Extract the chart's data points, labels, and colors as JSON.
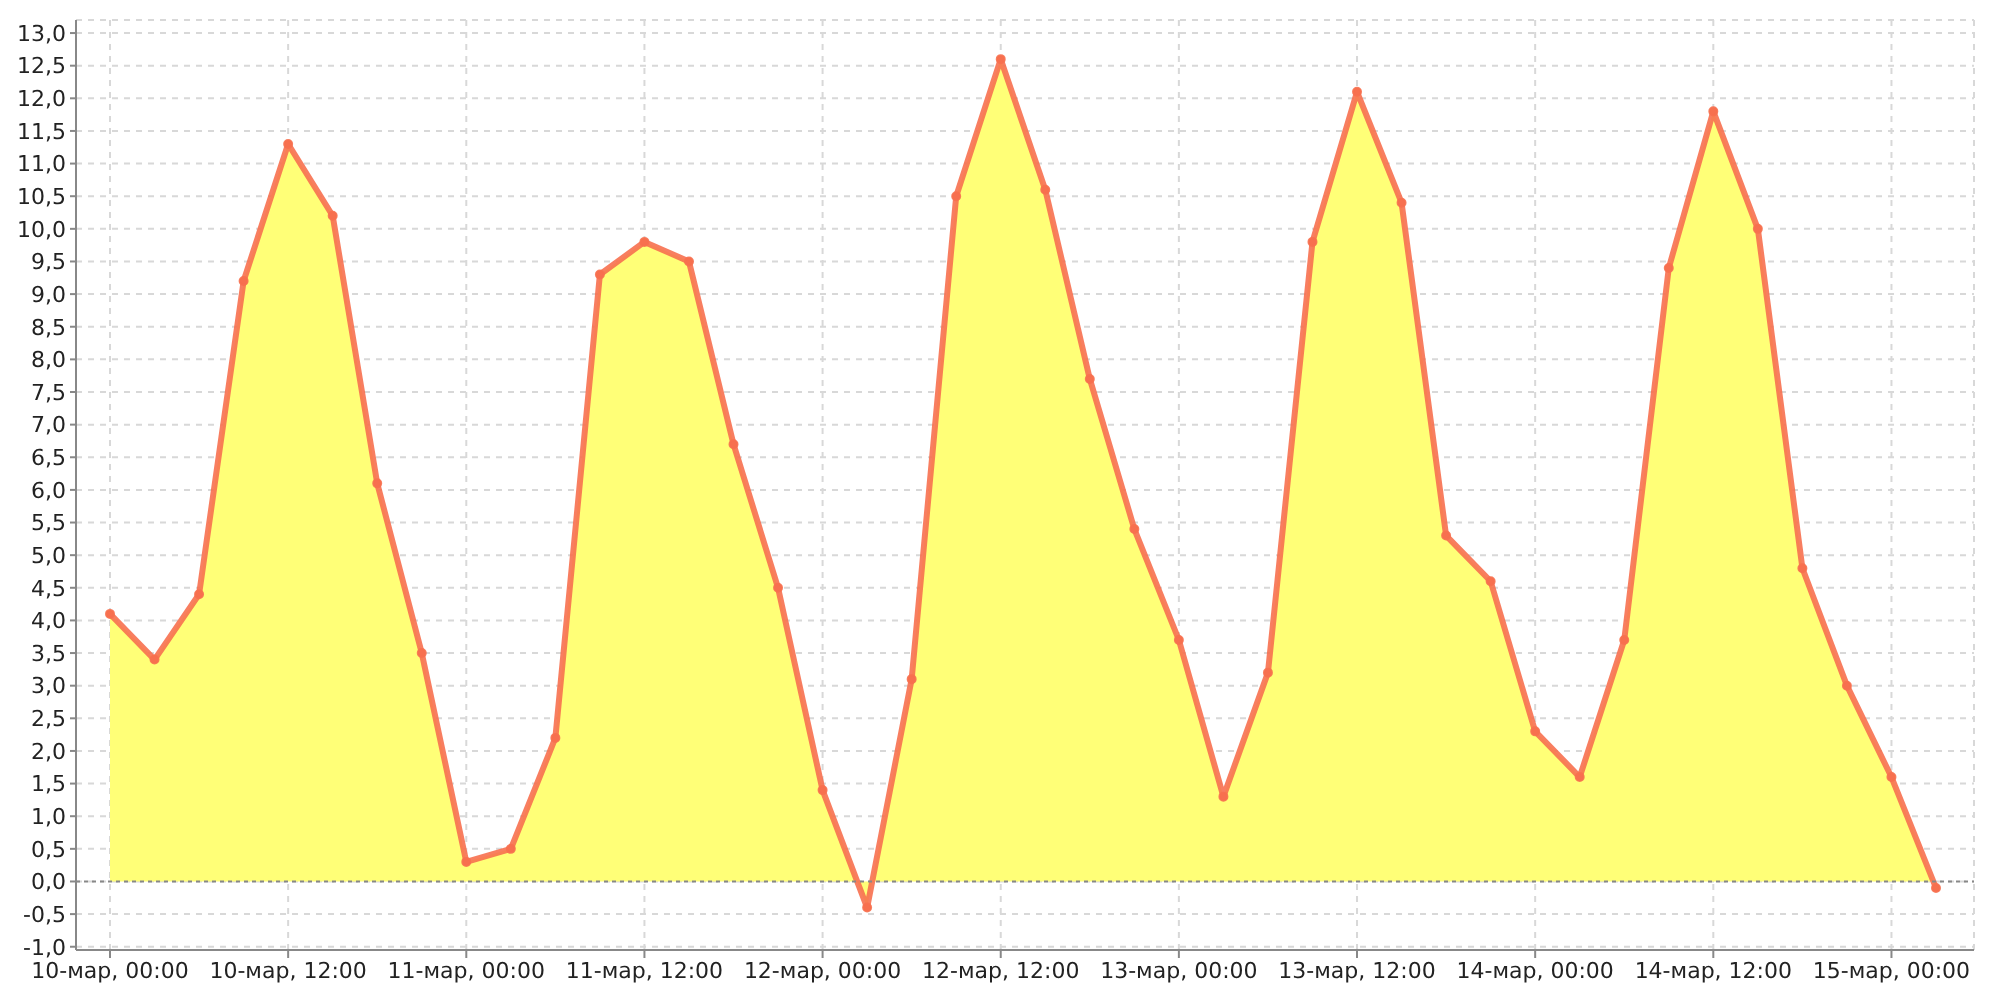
{
  "chart_data": {
    "type": "area",
    "categories": [
      "10-мар, 00:00",
      null,
      null,
      null,
      "10-мар, 12:00",
      null,
      null,
      null,
      "11-мар, 00:00",
      null,
      null,
      null,
      "11-мар, 12:00",
      null,
      null,
      null,
      "12-мар, 00:00",
      null,
      null,
      null,
      "12-мар, 12:00",
      null,
      null,
      null,
      "13-мар, 00:00",
      null,
      null,
      null,
      "13-мар, 12:00",
      null,
      null,
      null,
      "14-мар, 00:00",
      null,
      null,
      null,
      "14-мар, 12:00",
      null,
      null,
      null,
      "15-мар, 00:00",
      null
    ],
    "series": [
      {
        "color": "#ffff77",
        "values": [
          4.1,
          3.4,
          4.4,
          9.2,
          11.3,
          10.2,
          6.1,
          3.5,
          0.3,
          0.5,
          2.2,
          9.3,
          9.8,
          9.5,
          6.7,
          4.5,
          1.4,
          -0.4,
          3.1,
          10.5,
          12.6,
          10.6,
          7.7,
          5.4,
          3.7,
          1.3,
          3.2,
          9.8,
          12.1,
          10.4,
          5.3,
          4.6,
          2.3,
          1.6,
          3.7,
          9.4,
          11.8,
          10.0,
          4.8,
          3.0,
          1.6,
          -0.1
        ]
      }
    ],
    "ylim": [
      -1.05,
      13.2
    ],
    "yticks": [
      {
        "value": -1,
        "label": "-1,0"
      },
      {
        "value": -0.5,
        "label": "-0,5"
      },
      {
        "value": 0,
        "label": "0,0"
      },
      {
        "value": 0.5,
        "label": "0,5"
      },
      {
        "value": 1,
        "label": "1,0"
      },
      {
        "value": 1.5,
        "label": "1,5"
      },
      {
        "value": 2,
        "label": "2,0"
      },
      {
        "value": 2.5,
        "label": "2,5"
      },
      {
        "value": 3,
        "label": "3,0"
      },
      {
        "value": 3.5,
        "label": "3,5"
      },
      {
        "value": 4,
        "label": "4,0"
      },
      {
        "value": 4.5,
        "label": "4,5"
      },
      {
        "value": 5,
        "label": "5,0"
      },
      {
        "value": 5.5,
        "label": "5,5"
      },
      {
        "value": 6,
        "label": "6,0"
      },
      {
        "value": 6.5,
        "label": "6,5"
      },
      {
        "value": 7,
        "label": "7,0"
      },
      {
        "value": 7.5,
        "label": "7,5"
      },
      {
        "value": 8,
        "label": "8,0"
      },
      {
        "value": 8.5,
        "label": "8,5"
      },
      {
        "value": 9,
        "label": "9,0"
      },
      {
        "value": 9.5,
        "label": "9,5"
      },
      {
        "value": 10,
        "label": "10,0"
      },
      {
        "value": 10.5,
        "label": "10,5"
      },
      {
        "value": 11,
        "label": "11,0"
      },
      {
        "value": 11.5,
        "label": "11,5"
      },
      {
        "value": 12,
        "label": "12,0"
      },
      {
        "value": 12.5,
        "label": "12,5"
      },
      {
        "value": 13,
        "label": "13,0"
      }
    ],
    "ref_lines": [
      {
        "axis": "y",
        "value": 0,
        "color": "#888888",
        "line_style": "dotted"
      }
    ],
    "grid": true,
    "marker": "circle",
    "line_style": "solid"
  }
}
